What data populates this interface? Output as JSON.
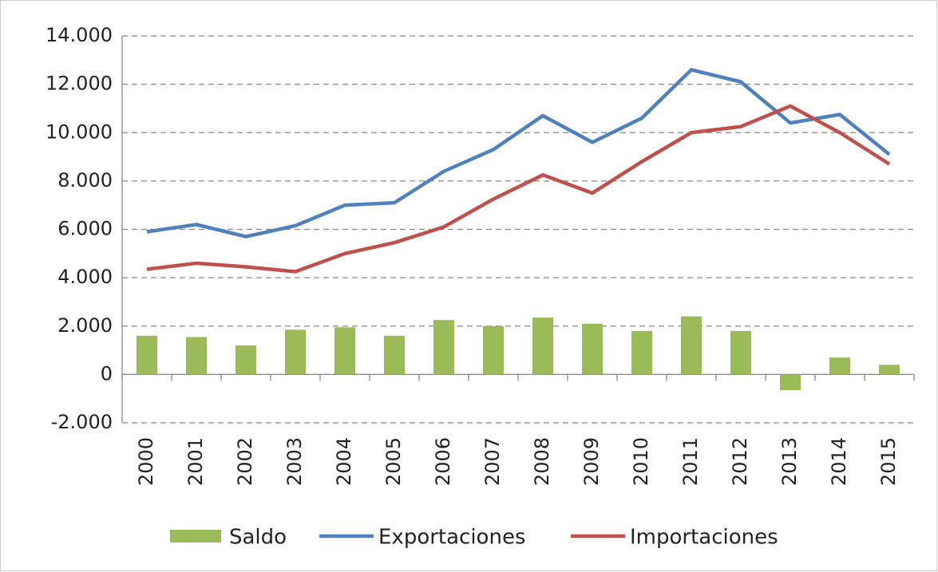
{
  "chart_data": {
    "type": "combo",
    "categories": [
      "2000",
      "2001",
      "2002",
      "2003",
      "2004",
      "2005",
      "2006",
      "2007",
      "2008",
      "2009",
      "2010",
      "2011",
      "2012",
      "2013",
      "2014",
      "2015"
    ],
    "series": [
      {
        "name": "Saldo",
        "type": "bar",
        "color": "#9bbb59",
        "values": [
          1600,
          1550,
          1200,
          1850,
          1950,
          1600,
          2250,
          2000,
          2350,
          2100,
          1800,
          2400,
          1800,
          -650,
          700,
          400
        ]
      },
      {
        "name": "Exportaciones",
        "type": "line",
        "color": "#4f81bd",
        "values": [
          5900,
          6200,
          5700,
          6150,
          7000,
          7100,
          8400,
          9300,
          10700,
          9600,
          10600,
          12600,
          12100,
          10400,
          10750,
          9100
        ]
      },
      {
        "name": "Importaciones",
        "type": "line",
        "color": "#c0504d",
        "values": [
          4350,
          4600,
          4450,
          4250,
          5000,
          5450,
          6100,
          7250,
          8250,
          7500,
          8800,
          10000,
          10250,
          11100,
          10000,
          8700
        ]
      }
    ],
    "ylim": [
      -2000,
      14000
    ],
    "yticks": [
      {
        "value": -2000,
        "label": "-2.000"
      },
      0,
      {
        "value": 2000,
        "label": "2.000"
      },
      {
        "value": 4000,
        "label": "4.000"
      },
      {
        "value": 6000,
        "label": "6.000"
      },
      {
        "value": 8000,
        "label": "8.000"
      },
      {
        "value": 10000,
        "label": "10.000"
      },
      {
        "value": 12000,
        "label": "12.000"
      },
      {
        "value": 14000,
        "label": "14.000"
      }
    ],
    "grid": true,
    "legend": "bottom"
  }
}
